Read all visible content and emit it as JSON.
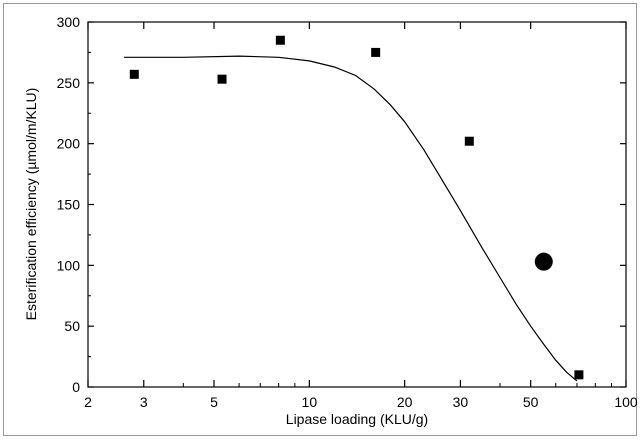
{
  "chart_data": {
    "type": "scatter",
    "xlabel": "Lipase loading (KLU/g)",
    "ylabel": "Esterification efficiency (µmol/m/KLU)",
    "x_scale": "log",
    "xlim": [
      2,
      100
    ],
    "ylim": [
      0,
      300
    ],
    "x_ticks": [
      2,
      3,
      5,
      10,
      20,
      30,
      50,
      100
    ],
    "y_ticks": [
      0,
      50,
      100,
      150,
      200,
      250,
      300
    ],
    "grid": false,
    "legend": "none",
    "series": [
      {
        "marker": "square",
        "color": "#000000",
        "x": [
          2.8,
          5.3,
          8.1,
          16.2,
          32,
          71
        ],
        "y": [
          257,
          253,
          285,
          275,
          202,
          10
        ]
      },
      {
        "marker": "circle",
        "color": "#000000",
        "x": [
          55
        ],
        "y": [
          103
        ]
      }
    ],
    "fit_curve": {
      "style": "line",
      "color": "#000000",
      "x": [
        2.6,
        4,
        6,
        8,
        10,
        12,
        14,
        16,
        18,
        20,
        23,
        26,
        30,
        35,
        40,
        45,
        50,
        55,
        60,
        65,
        70
      ],
      "y": [
        271,
        271,
        272,
        271,
        268,
        263,
        256,
        245,
        232,
        218,
        195,
        172,
        145,
        115,
        90,
        68,
        50,
        35,
        22,
        12,
        5
      ]
    }
  }
}
